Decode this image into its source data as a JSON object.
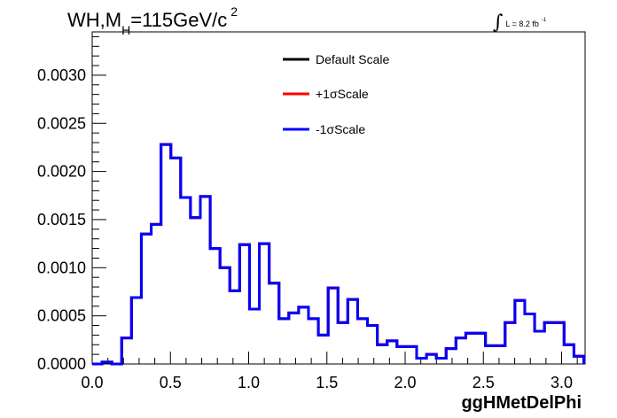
{
  "chart_data": {
    "type": "histogram",
    "title": {
      "prefix": "WH,M",
      "subscript": "H",
      "main": "=115GeV/c",
      "superscript": "2"
    },
    "luminosity": {
      "integral_symbol": "∫",
      "text": "L = 8.2 fb",
      "superscript": "-1"
    },
    "xlabel": "ggHMetDelPhi",
    "ylabel": "",
    "xlim": [
      0.0,
      3.15
    ],
    "ylim": [
      0.0,
      0.00345
    ],
    "x_ticks": [
      0.0,
      0.5,
      1.0,
      1.5,
      2.0,
      2.5,
      3.0
    ],
    "x_tick_labels": [
      "0.0",
      "0.5",
      "1.0",
      "1.5",
      "2.0",
      "2.5",
      "3.0"
    ],
    "y_ticks": [
      0.0,
      0.0005,
      0.001,
      0.0015,
      0.002,
      0.0025,
      0.003
    ],
    "y_tick_labels": [
      "0.0000",
      "0.0005",
      "0.0010",
      "0.0015",
      "0.0020",
      "0.0025",
      "0.0030"
    ],
    "bin_edges": [
      0.0,
      0.0628,
      0.1257,
      0.1885,
      0.2513,
      0.3142,
      0.377,
      0.4398,
      0.5027,
      0.5655,
      0.6283,
      0.6912,
      0.754,
      0.8168,
      0.8796,
      0.9425,
      1.0053,
      1.0681,
      1.131,
      1.1938,
      1.2566,
      1.3195,
      1.3823,
      1.4451,
      1.508,
      1.5708,
      1.6336,
      1.6965,
      1.7593,
      1.8221,
      1.885,
      1.9478,
      2.0106,
      2.0735,
      2.1363,
      2.1991,
      2.2619,
      2.3248,
      2.3876,
      2.4504,
      2.5133,
      2.5761,
      2.6389,
      2.7018,
      2.7646,
      2.8274,
      2.8903,
      2.9531,
      3.0159,
      3.0788,
      3.1416
    ],
    "series": [
      {
        "name": "Default Scale",
        "color": "#000000",
        "values": [
          0.0,
          2e-05,
          0.0,
          0.00027,
          0.00069,
          0.00135,
          0.00145,
          0.00228,
          0.00214,
          0.00173,
          0.00152,
          0.00174,
          0.0012,
          0.001,
          0.00076,
          0.00124,
          0.00057,
          0.00125,
          0.00084,
          0.00047,
          0.00053,
          0.00059,
          0.00047,
          0.0003,
          0.00079,
          0.00043,
          0.00067,
          0.00047,
          0.0004,
          0.0002,
          0.00024,
          0.00018,
          0.00018,
          6e-05,
          0.0001,
          6e-05,
          0.00016,
          0.00027,
          0.00032,
          0.00032,
          0.00019,
          0.00019,
          0.00043,
          0.00066,
          0.00052,
          0.00034,
          0.00043,
          0.00043,
          0.0002,
          8e-05
        ]
      },
      {
        "name": "+1σScale",
        "color": "#ff0000",
        "values": [
          0.0,
          2e-05,
          0.0,
          0.00027,
          0.00069,
          0.00135,
          0.00145,
          0.00228,
          0.00214,
          0.00173,
          0.00152,
          0.00174,
          0.0012,
          0.001,
          0.00076,
          0.00124,
          0.00057,
          0.00125,
          0.00084,
          0.00047,
          0.00053,
          0.00059,
          0.00047,
          0.0003,
          0.00079,
          0.00043,
          0.00067,
          0.00047,
          0.0004,
          0.0002,
          0.00024,
          0.00018,
          0.00018,
          6e-05,
          0.0001,
          6e-05,
          0.00016,
          0.00027,
          0.00032,
          0.00032,
          0.00019,
          0.00019,
          0.00043,
          0.00066,
          0.00052,
          0.00034,
          0.00043,
          0.00043,
          0.0002,
          8e-05
        ]
      },
      {
        "name": "-1σScale",
        "color": "#0000ff",
        "values": [
          0.0,
          2e-05,
          0.0,
          0.00027,
          0.00069,
          0.00135,
          0.00145,
          0.00228,
          0.00214,
          0.00173,
          0.00152,
          0.00174,
          0.0012,
          0.001,
          0.00076,
          0.00124,
          0.00057,
          0.00125,
          0.00084,
          0.00047,
          0.00053,
          0.00059,
          0.00047,
          0.0003,
          0.00079,
          0.00043,
          0.00067,
          0.00047,
          0.0004,
          0.0002,
          0.00024,
          0.00018,
          0.00018,
          6e-05,
          0.0001,
          6e-05,
          0.00016,
          0.00027,
          0.00032,
          0.00032,
          0.00019,
          0.00019,
          0.00043,
          0.00066,
          0.00052,
          0.00034,
          0.00043,
          0.00043,
          0.0002,
          8e-05
        ]
      }
    ],
    "legend": {
      "position": "top-right",
      "entries": [
        "Default Scale",
        "+1σScale",
        "-1σScale"
      ]
    },
    "grid": false
  }
}
